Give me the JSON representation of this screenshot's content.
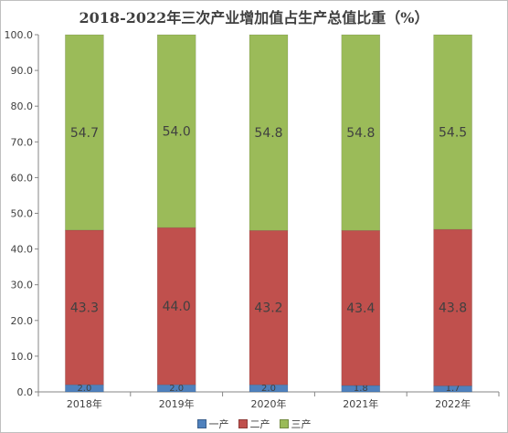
{
  "chart_data": {
    "type": "bar",
    "stacked": true,
    "title": "2018-2022年三次产业增加值占生产总值比重（%）",
    "categories": [
      "2018年",
      "2019年",
      "2020年",
      "2021年",
      "2022年"
    ],
    "series": [
      {
        "name": "一产",
        "color": "#4f81bd",
        "values": [
          2.0,
          2.0,
          2.0,
          1.8,
          1.7
        ],
        "labels": [
          "2.0",
          "2.0",
          "2.0",
          "1.8",
          "1.7"
        ]
      },
      {
        "name": "二产",
        "color": "#c0504d",
        "values": [
          43.3,
          44.0,
          43.2,
          43.4,
          43.8
        ],
        "labels": [
          "43.3",
          "44.0",
          "43.2",
          "43.4",
          "43.8"
        ]
      },
      {
        "name": "三产",
        "color": "#9bbb59",
        "values": [
          54.7,
          54.0,
          54.8,
          54.8,
          54.5
        ],
        "labels": [
          "54.7",
          "54.0",
          "54.8",
          "54.8",
          "54.5"
        ]
      }
    ],
    "ylim": [
      0,
      100
    ],
    "yticks": [
      "0.0",
      "10.0",
      "20.0",
      "30.0",
      "40.0",
      "50.0",
      "60.0",
      "70.0",
      "80.0",
      "90.0",
      "100.0"
    ],
    "grid": false,
    "legend": "bottom"
  }
}
